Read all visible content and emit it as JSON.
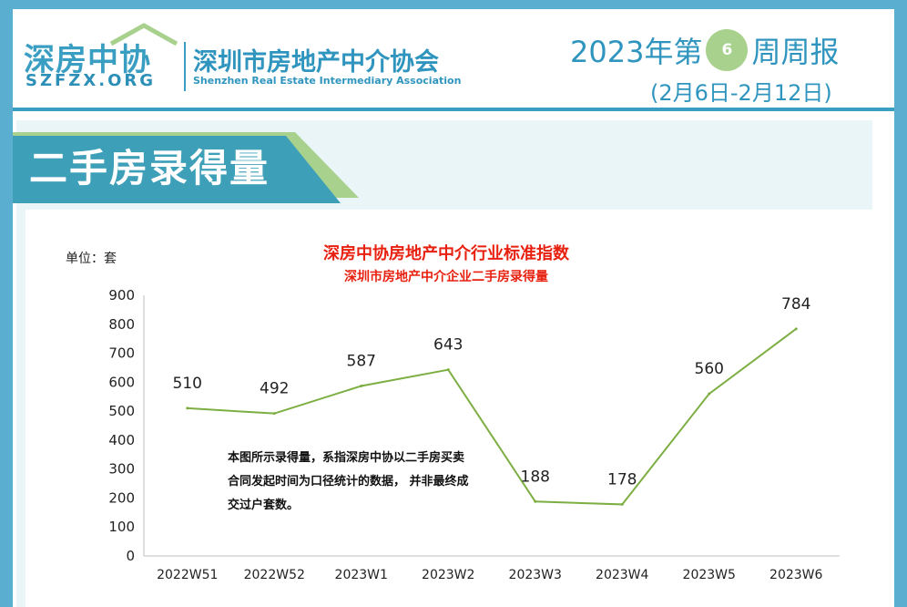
{
  "header": {
    "logo_text": "深房中协",
    "logo_sub": "SZFZX.ORG",
    "assoc_cn": "深圳市房地产中介协会",
    "assoc_en": "Shenzhen Real Estate Intermediary Association",
    "weekly_prefix": "2023年第",
    "week_number": "6",
    "weekly_suffix": "周周报",
    "date_range": "(2月6日-2月12日)"
  },
  "section_title": "二手房录得量",
  "colors": {
    "accent": "#3a9ec3",
    "tag_green": "#a9d18e",
    "line": "#7cae42",
    "title_red": "#e8200f"
  },
  "chart_data": {
    "type": "line",
    "title": "深房中协房地产中介行业标准指数",
    "subtitle": "深圳市房地产中介企业二手房录得量",
    "unit_label": "单位：套",
    "categories": [
      "2022W51",
      "2022W52",
      "2023W1",
      "2023W2",
      "2023W3",
      "2023W4",
      "2023W5",
      "2023W6"
    ],
    "values": [
      510,
      492,
      587,
      643,
      188,
      178,
      560,
      784
    ],
    "y_ticks": [
      0,
      100,
      200,
      300,
      400,
      500,
      600,
      700,
      800,
      900
    ],
    "ylim": [
      0,
      900
    ],
    "grid": false,
    "note": "本图所示录得量，系指深房中协以二手房买卖合同发起时间为口径统计的数据， 并非最终成交过户套数。"
  }
}
